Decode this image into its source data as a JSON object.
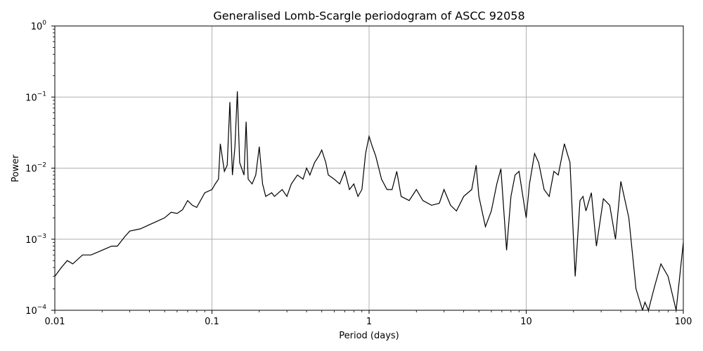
{
  "chart_data": {
    "type": "line",
    "title": "Generalised Lomb-Scargle periodogram of ASCC 92058",
    "xlabel": "Period (days)",
    "ylabel": "Power",
    "xscale": "log",
    "yscale": "log",
    "xlim": [
      0.01,
      100
    ],
    "ylim": [
      0.0001,
      1
    ],
    "grid": true,
    "line_color": "#000000",
    "grid_color": "#b0b0b0",
    "x_ticks": [
      {
        "value": 0.01,
        "label": "0.01"
      },
      {
        "value": 0.1,
        "label": "0.1"
      },
      {
        "value": 1,
        "label": "1"
      },
      {
        "value": 10,
        "label": "10"
      },
      {
        "value": 100,
        "label": "100"
      }
    ],
    "y_ticks": [
      {
        "value": 0.0001,
        "base": "10",
        "exp": "−4"
      },
      {
        "value": 0.001,
        "base": "10",
        "exp": "−3"
      },
      {
        "value": 0.01,
        "base": "10",
        "exp": "−2"
      },
      {
        "value": 0.1,
        "base": "10",
        "exp": "−1"
      },
      {
        "value": 1,
        "base": "10",
        "exp": "0"
      }
    ],
    "series": [
      {
        "points": [
          [
            0.01,
            0.0003
          ],
          [
            0.011,
            0.0004
          ],
          [
            0.012,
            0.0005
          ],
          [
            0.013,
            0.00045
          ],
          [
            0.015,
            0.0006
          ],
          [
            0.017,
            0.0006
          ],
          [
            0.02,
            0.0007
          ],
          [
            0.023,
            0.0008
          ],
          [
            0.025,
            0.0008
          ],
          [
            0.028,
            0.0011
          ],
          [
            0.03,
            0.0013
          ],
          [
            0.035,
            0.0014
          ],
          [
            0.04,
            0.0016
          ],
          [
            0.045,
            0.0018
          ],
          [
            0.05,
            0.002
          ],
          [
            0.055,
            0.0024
          ],
          [
            0.06,
            0.0023
          ],
          [
            0.065,
            0.0026
          ],
          [
            0.07,
            0.0035
          ],
          [
            0.075,
            0.003
          ],
          [
            0.08,
            0.0028
          ],
          [
            0.09,
            0.0045
          ],
          [
            0.1,
            0.005
          ],
          [
            0.105,
            0.006
          ],
          [
            0.11,
            0.007
          ],
          [
            0.113,
            0.022
          ],
          [
            0.12,
            0.009
          ],
          [
            0.125,
            0.011
          ],
          [
            0.13,
            0.085
          ],
          [
            0.135,
            0.008
          ],
          [
            0.14,
            0.02
          ],
          [
            0.145,
            0.12
          ],
          [
            0.15,
            0.012
          ],
          [
            0.16,
            0.008
          ],
          [
            0.165,
            0.045
          ],
          [
            0.17,
            0.007
          ],
          [
            0.18,
            0.006
          ],
          [
            0.19,
            0.008
          ],
          [
            0.2,
            0.02
          ],
          [
            0.21,
            0.006
          ],
          [
            0.22,
            0.004
          ],
          [
            0.24,
            0.0045
          ],
          [
            0.25,
            0.004
          ],
          [
            0.28,
            0.005
          ],
          [
            0.3,
            0.004
          ],
          [
            0.32,
            0.006
          ],
          [
            0.35,
            0.008
          ],
          [
            0.38,
            0.007
          ],
          [
            0.4,
            0.01
          ],
          [
            0.42,
            0.008
          ],
          [
            0.45,
            0.012
          ],
          [
            0.48,
            0.015
          ],
          [
            0.5,
            0.018
          ],
          [
            0.53,
            0.012
          ],
          [
            0.55,
            0.008
          ],
          [
            0.6,
            0.007
          ],
          [
            0.65,
            0.006
          ],
          [
            0.7,
            0.009
          ],
          [
            0.75,
            0.005
          ],
          [
            0.8,
            0.006
          ],
          [
            0.85,
            0.004
          ],
          [
            0.9,
            0.005
          ],
          [
            0.95,
            0.016
          ],
          [
            1.0,
            0.028
          ],
          [
            1.05,
            0.02
          ],
          [
            1.1,
            0.015
          ],
          [
            1.2,
            0.007
          ],
          [
            1.3,
            0.005
          ],
          [
            1.4,
            0.005
          ],
          [
            1.5,
            0.009
          ],
          [
            1.6,
            0.004
          ],
          [
            1.8,
            0.0035
          ],
          [
            2.0,
            0.005
          ],
          [
            2.2,
            0.0035
          ],
          [
            2.5,
            0.003
          ],
          [
            2.8,
            0.0032
          ],
          [
            3.0,
            0.005
          ],
          [
            3.3,
            0.003
          ],
          [
            3.6,
            0.0025
          ],
          [
            4.0,
            0.004
          ],
          [
            4.5,
            0.005
          ],
          [
            4.8,
            0.011
          ],
          [
            5.0,
            0.004
          ],
          [
            5.5,
            0.0015
          ],
          [
            6.0,
            0.0025
          ],
          [
            6.5,
            0.006
          ],
          [
            6.9,
            0.0098
          ],
          [
            7.5,
            0.0007
          ],
          [
            8.0,
            0.004
          ],
          [
            8.5,
            0.008
          ],
          [
            9.0,
            0.009
          ],
          [
            10.0,
            0.002
          ],
          [
            10.5,
            0.006
          ],
          [
            11.3,
            0.016
          ],
          [
            12.0,
            0.012
          ],
          [
            13.0,
            0.005
          ],
          [
            14.0,
            0.004
          ],
          [
            15.0,
            0.009
          ],
          [
            16.0,
            0.008
          ],
          [
            17.5,
            0.022
          ],
          [
            19.0,
            0.012
          ],
          [
            20.5,
            0.0003
          ],
          [
            22.0,
            0.0035
          ],
          [
            23.0,
            0.004
          ],
          [
            24.0,
            0.0025
          ],
          [
            26.0,
            0.0045
          ],
          [
            28.0,
            0.0008
          ],
          [
            31.0,
            0.0037
          ],
          [
            34.0,
            0.003
          ],
          [
            37.0,
            0.001
          ],
          [
            40.0,
            0.0065
          ],
          [
            45.0,
            0.002
          ],
          [
            50.0,
            0.0002
          ],
          [
            55.0,
            0.0001
          ],
          [
            57.0,
            0.00013
          ],
          [
            60.0,
            0.0001
          ],
          [
            65.0,
            0.0002
          ],
          [
            72.0,
            0.00045
          ],
          [
            80.0,
            0.0003
          ],
          [
            90.0,
            0.0001
          ],
          [
            100.0,
            0.0009
          ]
        ]
      }
    ]
  }
}
